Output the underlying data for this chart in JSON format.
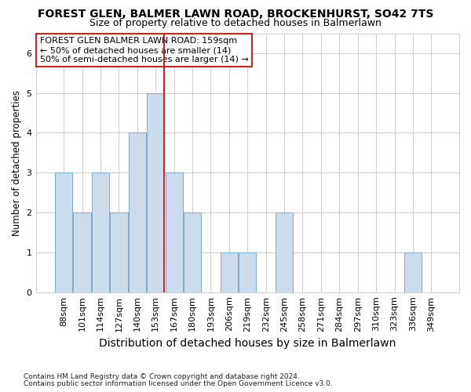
{
  "title": "FOREST GLEN, BALMER LAWN ROAD, BROCKENHURST, SO42 7TS",
  "subtitle": "Size of property relative to detached houses in Balmerlawn",
  "xlabel": "Distribution of detached houses by size in Balmerlawn",
  "ylabel": "Number of detached properties",
  "footnote1": "Contains HM Land Registry data © Crown copyright and database right 2024.",
  "footnote2": "Contains public sector information licensed under the Open Government Licence v3.0.",
  "categories": [
    "88sqm",
    "101sqm",
    "114sqm",
    "127sqm",
    "140sqm",
    "153sqm",
    "167sqm",
    "180sqm",
    "193sqm",
    "206sqm",
    "219sqm",
    "232sqm",
    "245sqm",
    "258sqm",
    "271sqm",
    "284sqm",
    "297sqm",
    "310sqm",
    "323sqm",
    "336sqm",
    "349sqm"
  ],
  "values": [
    3,
    2,
    3,
    2,
    4,
    5,
    3,
    2,
    0,
    1,
    1,
    0,
    2,
    0,
    0,
    0,
    0,
    0,
    0,
    1,
    0
  ],
  "bar_color": "#ccdcec",
  "bar_edge_color": "#7aaacb",
  "vline_index": 5,
  "vline_color": "#cc2222",
  "ylim": [
    0,
    6.5
  ],
  "yticks": [
    0,
    1,
    2,
    3,
    4,
    5,
    6
  ],
  "annotation_text": "FOREST GLEN BALMER LAWN ROAD: 159sqm\n← 50% of detached houses are smaller (14)\n50% of semi-detached houses are larger (14) →",
  "annotation_box_color": "#ffffff",
  "annotation_border_color": "#cc2222",
  "bg_color": "#ffffff",
  "grid_color": "#cccccc",
  "title_fontsize": 10,
  "subtitle_fontsize": 9,
  "xlabel_fontsize": 10,
  "ylabel_fontsize": 8.5,
  "tick_fontsize": 8,
  "annot_fontsize": 8,
  "footnote_fontsize": 6.5
}
